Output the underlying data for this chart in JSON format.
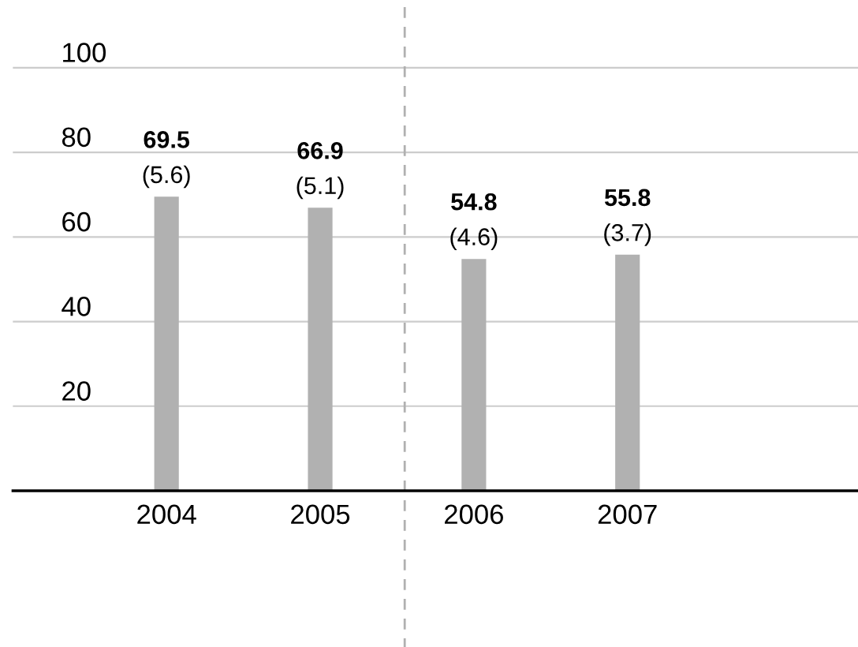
{
  "chart_data": {
    "type": "bar",
    "x": [
      2004,
      2005,
      2006,
      2007
    ],
    "values": [
      69.5,
      66.9,
      54.8,
      55.8
    ],
    "color": "#b1b1b1",
    "value_labels": [
      "69.5",
      "66.9",
      "54.8",
      "55.8"
    ],
    "annotations": [
      {
        "text": "(5.6)",
        "x": 2004,
        "y": 69.5
      },
      {
        "text": "(5.1)",
        "x": 2005,
        "y": 66.9
      },
      {
        "text": "(4.6)",
        "x": 2006,
        "y": 54.8
      },
      {
        "text": "(3.7)",
        "x": 2007,
        "y": 55.8
      }
    ],
    "xlim": [
      2003.0,
      2008.5
    ],
    "xticks": [
      2004,
      2005,
      2006,
      2007
    ],
    "ylim": [
      0,
      116
    ],
    "yticks": [
      20,
      40,
      60,
      80,
      100
    ],
    "grid": "y",
    "ref_lines": [
      {
        "axis": "x",
        "value": 2005.55,
        "color": "#b0b0b0",
        "line_style": "dashed"
      }
    ]
  }
}
